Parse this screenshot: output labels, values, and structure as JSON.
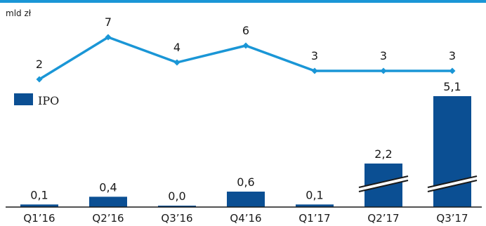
{
  "chart_data": {
    "type": "bar",
    "unit_label": "mld zł",
    "categories": [
      "Q1’16",
      "Q2’16",
      "Q3’16",
      "Q4’16",
      "Q1’17",
      "Q2’17",
      "Q3’17"
    ],
    "bar_series": {
      "name": "IPO",
      "values": [
        0.1,
        0.4,
        0.0,
        0.6,
        0.1,
        2.2,
        5.1
      ],
      "value_labels": [
        "0,1",
        "0,4",
        "0,0",
        "0,6",
        "0,1",
        "2,2",
        "5,1"
      ],
      "axis_break": [
        false,
        false,
        false,
        false,
        false,
        true,
        true
      ],
      "color": "#0b4f93"
    },
    "line_series": {
      "values": [
        2,
        7,
        4,
        6,
        3,
        3,
        3
      ],
      "value_labels": [
        "2",
        "7",
        "4",
        "6",
        "3",
        "3",
        "3"
      ],
      "color": "#1a96d6"
    },
    "top_rule_color": "#1a96d6",
    "legend": {
      "label": "IPO",
      "position": "left"
    }
  }
}
